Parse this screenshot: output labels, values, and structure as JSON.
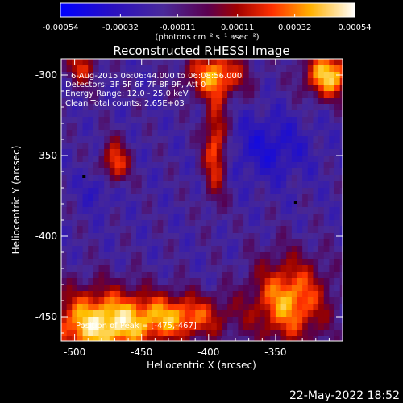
{
  "colorbar": {
    "tick_labels": [
      "-0.00054",
      "-0.00032",
      "-0.00011",
      "0.00011",
      "0.00032",
      "0.00054"
    ],
    "tick_values": [
      -0.00054,
      -0.00032,
      -0.00011,
      0.00011,
      0.00032,
      0.00054
    ],
    "range": [
      -0.00054,
      0.00054
    ],
    "unit_label": "(photons cm⁻² s⁻¹ asec⁻²)"
  },
  "chart_data": {
    "type": "heatmap",
    "title": "Reconstructed RHESSI Image",
    "xlabel": "Heliocentric X (arcsec)",
    "ylabel": "Heliocentric Y (arcsec)",
    "xlim": [
      -510,
      -300
    ],
    "ylim": [
      -465,
      -290
    ],
    "x_ticks": [
      -500,
      -450,
      -400,
      -350
    ],
    "x_tick_labels": [
      "-500",
      "-450",
      "-400",
      "-350"
    ],
    "y_ticks": [
      -300,
      -350,
      -400,
      -450
    ],
    "y_tick_labels": [
      "-300",
      "-350",
      "-400",
      "-450"
    ],
    "colormap": [
      "#0000ff",
      "#3a007f",
      "#7f0000",
      "#ff3c00",
      "#ffd200",
      "#ffffff"
    ],
    "annotations": [
      "6-Aug-2015 06:06:44.000 to 06:08:56.000",
      "Detectors: 3F 5F 6F 7F 8F 9F, Att 0",
      "Energy Range: 12.0 - 25.0 keV",
      "Clean    Total counts: 2.65E+03"
    ],
    "peak_label": "Position of Peak = [-475,-467]",
    "peak_position": [
      -475,
      -467
    ]
  },
  "footer": {
    "timestamp": "22-May-2022 18:52"
  }
}
